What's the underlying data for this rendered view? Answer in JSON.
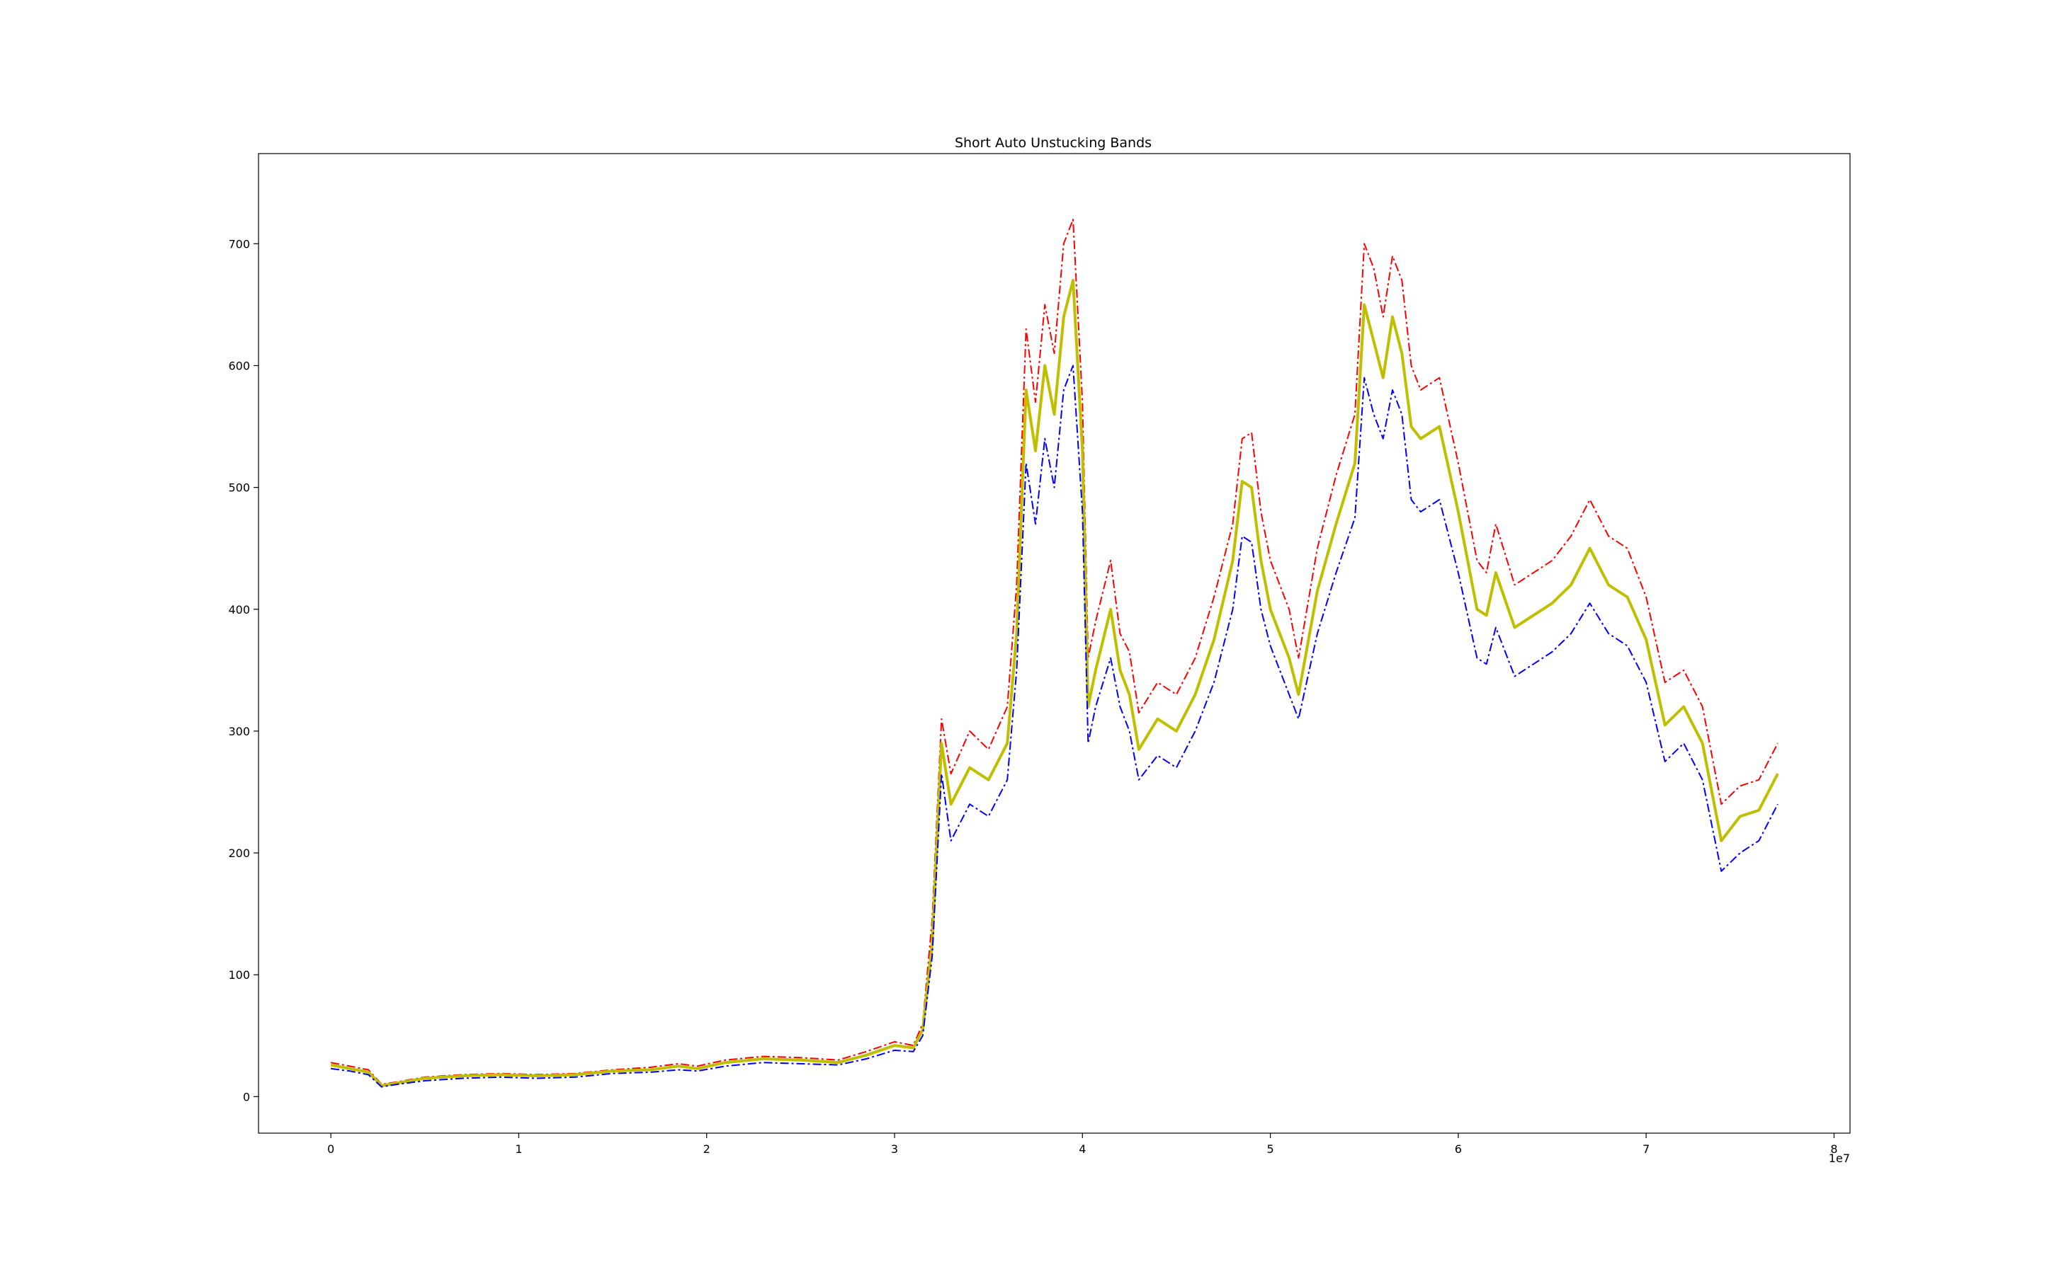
{
  "chart_data": {
    "type": "line",
    "title": "Short Auto Unstucking Bands",
    "xlabel": "",
    "ylabel": "",
    "x_offset_label": "1e7",
    "xlim": [
      -3850000,
      80850000
    ],
    "ylim": [
      -30,
      774
    ],
    "x_ticks": [
      0,
      10000000,
      20000000,
      30000000,
      40000000,
      50000000,
      60000000,
      70000000,
      80000000
    ],
    "x_tick_labels": [
      "0",
      "1",
      "2",
      "3",
      "4",
      "5",
      "6",
      "7",
      "8"
    ],
    "y_ticks": [
      0,
      100,
      200,
      300,
      400,
      500,
      600,
      700
    ],
    "y_tick_labels": [
      "0",
      "100",
      "200",
      "300",
      "400",
      "500",
      "600",
      "700"
    ],
    "grid": false,
    "legend": "none",
    "colors": {
      "upper": "#ff0000",
      "middle": "#bfbf00",
      "lower": "#0000ff"
    },
    "x": [
      0,
      1000000,
      2000000,
      2700000,
      3500000,
      5000000,
      7000000,
      9000000,
      11000000,
      13000000,
      15000000,
      17000000,
      18500000,
      19500000,
      21000000,
      23000000,
      25000000,
      27000000,
      28500000,
      30000000,
      31000000,
      31500000,
      32000000,
      32500000,
      33000000,
      34000000,
      35000000,
      36000000,
      36500000,
      37000000,
      37500000,
      38000000,
      38500000,
      39000000,
      39500000,
      40000000,
      40300000,
      40700000,
      41500000,
      42000000,
      42500000,
      43000000,
      44000000,
      45000000,
      46000000,
      47000000,
      48000000,
      48500000,
      49000000,
      49500000,
      50000000,
      51000000,
      51500000,
      52500000,
      53500000,
      54500000,
      55000000,
      55500000,
      56000000,
      56500000,
      57000000,
      57500000,
      58000000,
      59000000,
      60000000,
      61000000,
      61500000,
      62000000,
      63000000,
      64000000,
      65000000,
      66000000,
      67000000,
      68000000,
      69000000,
      70000000,
      71000000,
      72000000,
      73000000,
      74000000,
      75000000,
      76000000,
      77000000
    ],
    "series": [
      {
        "role": "upper",
        "values": [
          28,
          25,
          22,
          10,
          12,
          16,
          18,
          19,
          18,
          19,
          22,
          24,
          27,
          25,
          30,
          33,
          32,
          30,
          37,
          45,
          42,
          60,
          145,
          310,
          265,
          300,
          285,
          320,
          420,
          630,
          570,
          650,
          610,
          700,
          720,
          570,
          360,
          390,
          440,
          380,
          365,
          315,
          340,
          330,
          360,
          410,
          470,
          540,
          545,
          480,
          440,
          400,
          360,
          450,
          510,
          560,
          700,
          680,
          640,
          690,
          670,
          600,
          580,
          590,
          520,
          440,
          430,
          470,
          420,
          430,
          440,
          460,
          490,
          460,
          450,
          410,
          340,
          350,
          320,
          240,
          255,
          260,
          290
        ]
      },
      {
        "role": "middle",
        "values": [
          26,
          23,
          20,
          9,
          11,
          15,
          17,
          18,
          17,
          18,
          21,
          22,
          25,
          23,
          28,
          31,
          30,
          28,
          34,
          42,
          40,
          55,
          125,
          290,
          240,
          270,
          260,
          290,
          380,
          580,
          530,
          600,
          560,
          640,
          670,
          530,
          320,
          350,
          400,
          350,
          330,
          285,
          310,
          300,
          330,
          375,
          440,
          505,
          500,
          440,
          400,
          360,
          330,
          415,
          470,
          520,
          650,
          620,
          590,
          640,
          610,
          550,
          540,
          550,
          480,
          400,
          395,
          430,
          385,
          395,
          405,
          420,
          450,
          420,
          410,
          375,
          305,
          320,
          290,
          210,
          230,
          235,
          265
        ]
      },
      {
        "role": "lower",
        "values": [
          23,
          21,
          18,
          8,
          10,
          13,
          15,
          16,
          15,
          16,
          19,
          20,
          22,
          21,
          25,
          28,
          27,
          26,
          31,
          38,
          37,
          50,
          115,
          265,
          210,
          240,
          230,
          260,
          350,
          520,
          470,
          540,
          500,
          580,
          600,
          480,
          290,
          320,
          360,
          320,
          300,
          260,
          280,
          270,
          300,
          340,
          400,
          460,
          455,
          400,
          370,
          330,
          310,
          380,
          430,
          475,
          590,
          560,
          540,
          580,
          560,
          490,
          480,
          490,
          430,
          360,
          355,
          385,
          345,
          355,
          365,
          380,
          405,
          380,
          370,
          340,
          275,
          290,
          260,
          185,
          200,
          210,
          240
        ]
      }
    ]
  }
}
